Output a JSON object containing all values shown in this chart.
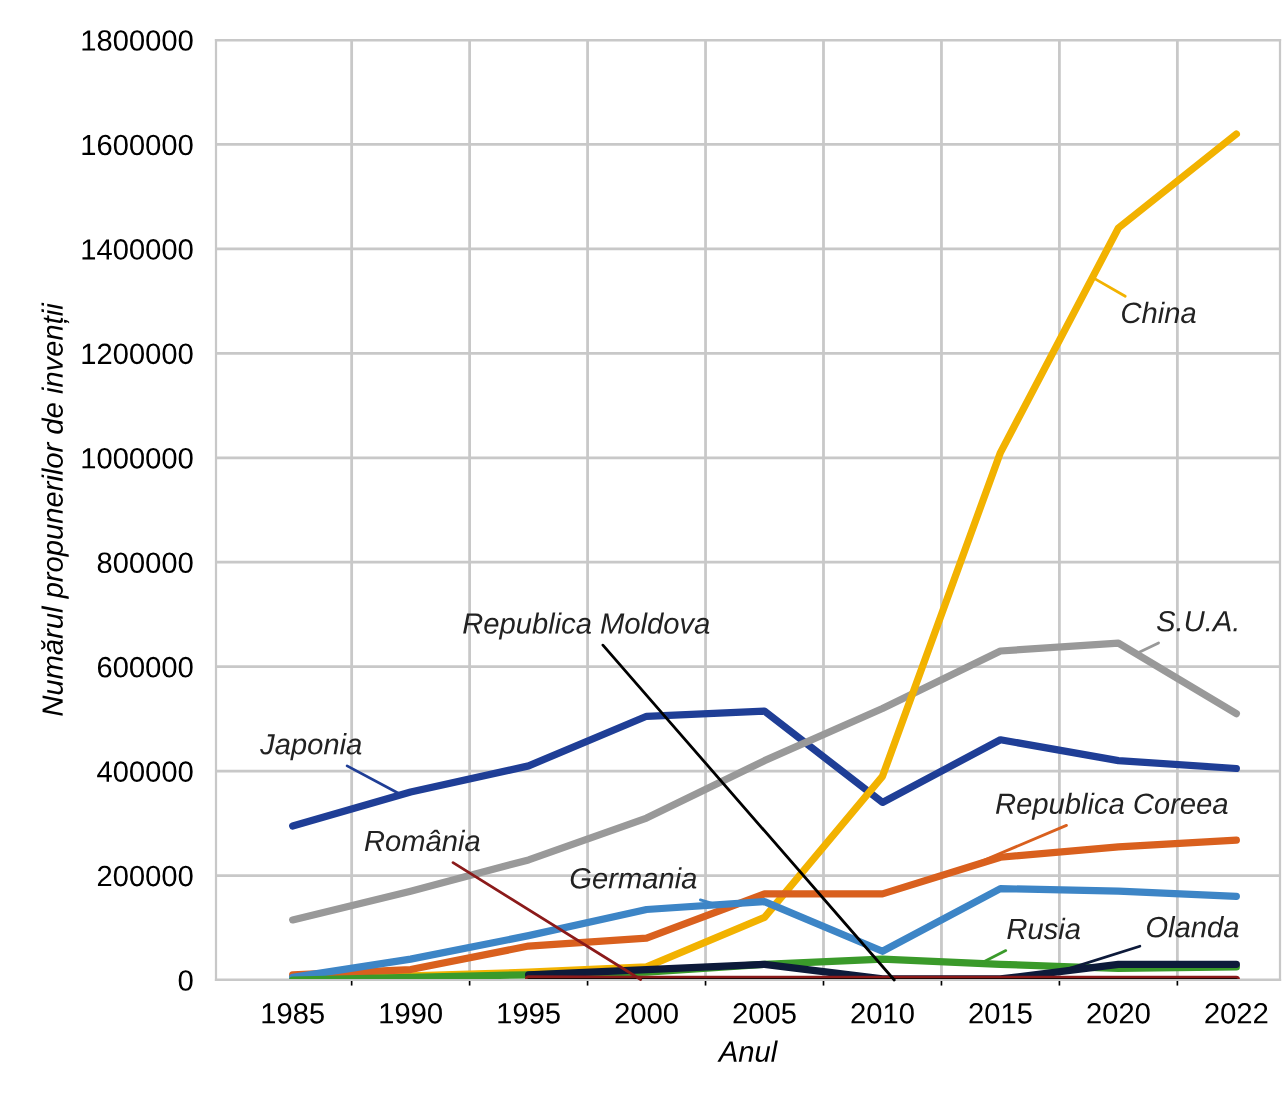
{
  "chart_data": {
    "type": "line",
    "xlabel": "Anul",
    "ylabel": "Numărul propunerilor de invenții",
    "categories": [
      "1985",
      "1990",
      "1995",
      "2000",
      "2005",
      "2010",
      "2015",
      "2020",
      "2022"
    ],
    "ylim": [
      0,
      1800000
    ],
    "yticks": [
      0,
      200000,
      400000,
      600000,
      800000,
      1000000,
      1200000,
      1400000,
      1600000,
      1800000
    ],
    "grid": true,
    "marker": "none",
    "line_style": "solid",
    "series": [
      {
        "name": "Japonia",
        "color": "#1f3e96",
        "values": [
          295000,
          360000,
          410000,
          505000,
          515000,
          340000,
          460000,
          420000,
          405000
        ]
      },
      {
        "name": "S.U.A.",
        "color": "#999999",
        "values": [
          115000,
          170000,
          230000,
          310000,
          420000,
          520000,
          630000,
          645000,
          510000
        ]
      },
      {
        "name": "China",
        "color": "#f2b200",
        "values": [
          5000,
          8000,
          15000,
          25000,
          120000,
          390000,
          1010000,
          1440000,
          1620000
        ]
      },
      {
        "name": "Republica Coreea",
        "color": "#d9601e",
        "values": [
          10000,
          20000,
          65000,
          80000,
          165000,
          165000,
          235000,
          255000,
          268000
        ]
      },
      {
        "name": "Germania",
        "color": "#3d85c6",
        "values": [
          5000,
          40000,
          85000,
          135000,
          150000,
          55000,
          175000,
          170000,
          160000
        ]
      },
      {
        "name": "Rusia",
        "color": "#3a9a2a",
        "values": [
          0,
          5000,
          10000,
          15000,
          30000,
          40000,
          30000,
          22000,
          25000
        ]
      },
      {
        "name": "Olanda",
        "color": "#0d1a3a",
        "values": [
          null,
          null,
          10000,
          20000,
          30000,
          2000,
          2000,
          30000,
          30000
        ]
      },
      {
        "name": "România",
        "color": "#8b1a1a",
        "values": [
          null,
          null,
          2000,
          1000,
          1000,
          1000,
          1000,
          1000,
          1000
        ]
      },
      {
        "name": "Republica Moldova",
        "color": "#000000",
        "values": [
          null,
          null,
          0,
          0,
          0,
          0,
          0,
          0,
          0
        ]
      }
    ]
  }
}
